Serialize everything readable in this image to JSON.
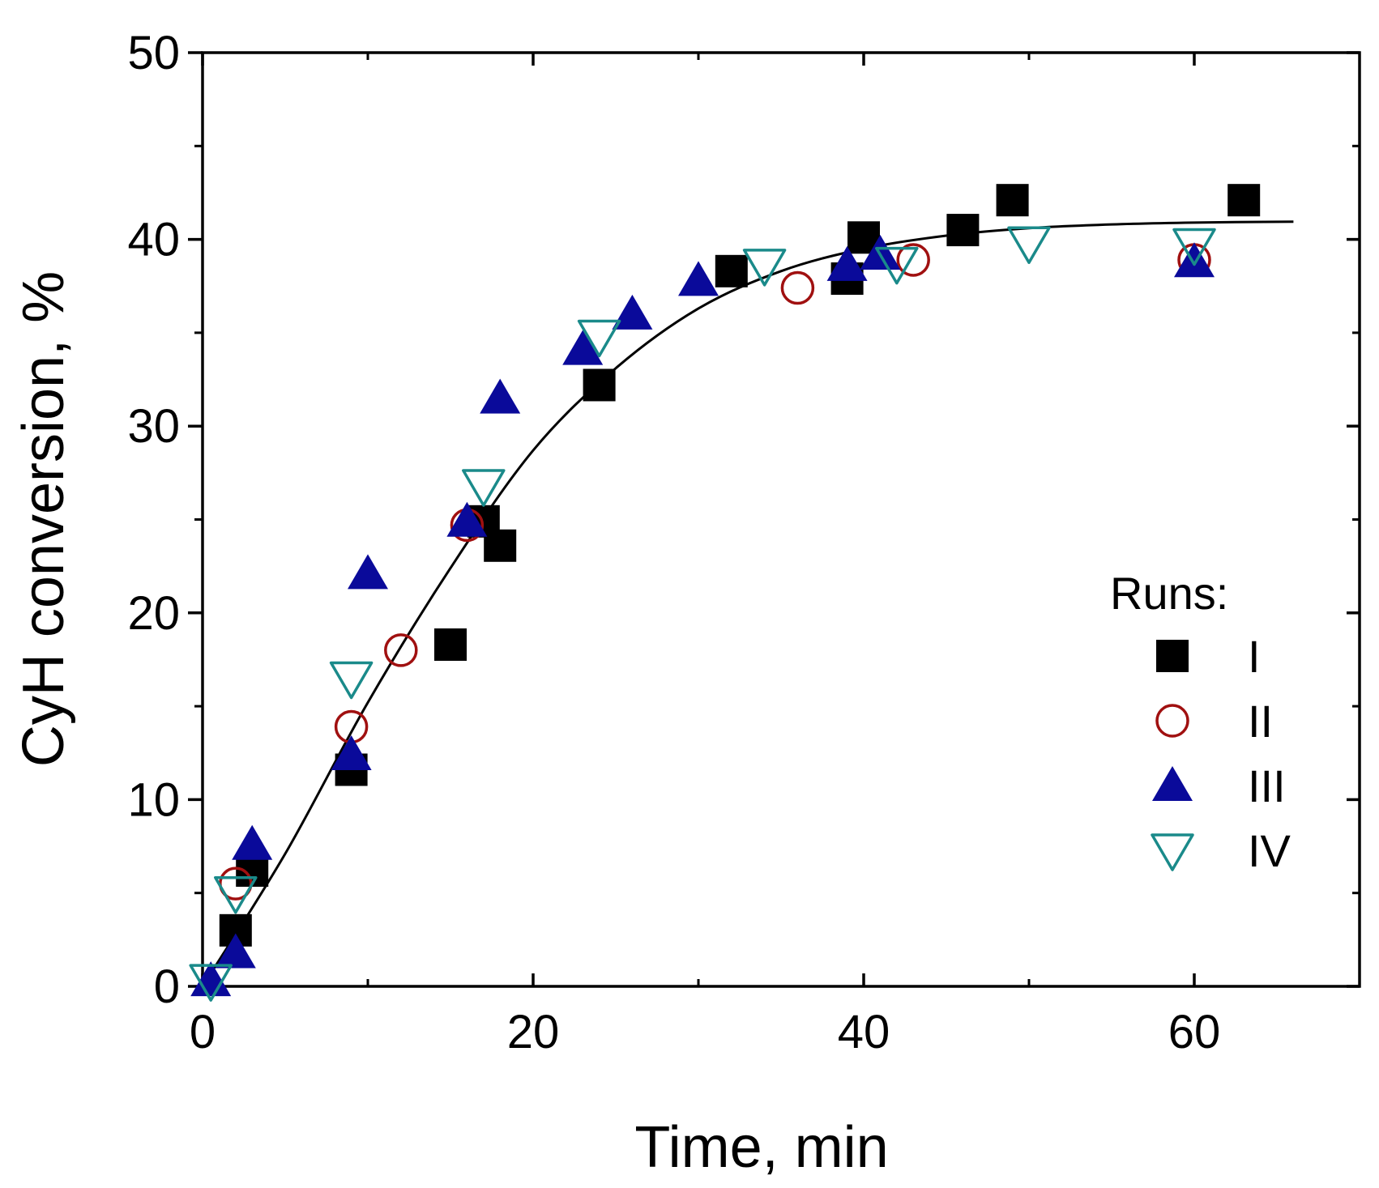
{
  "chart_data": {
    "type": "scatter",
    "title": "",
    "xlabel": "Time, min",
    "ylabel": "CyH conversion, %",
    "xlim": [
      0,
      70
    ],
    "ylim": [
      0,
      50
    ],
    "xticks": [
      0,
      20,
      40,
      60
    ],
    "yticks": [
      0,
      10,
      20,
      30,
      40,
      50
    ],
    "grid": false,
    "legend": {
      "title": "Runs:",
      "position": "right"
    },
    "series": [
      {
        "name": "I",
        "marker": "filled-square",
        "color": "#000000",
        "points": [
          [
            2,
            3
          ],
          [
            3,
            6.2
          ],
          [
            9,
            11.6
          ],
          [
            15,
            18.3
          ],
          [
            17,
            24.9
          ],
          [
            18,
            23.6
          ],
          [
            24,
            32.2
          ],
          [
            32,
            38.3
          ],
          [
            39,
            37.9
          ],
          [
            40,
            40.1
          ],
          [
            46,
            40.5
          ],
          [
            49,
            42.1
          ],
          [
            63,
            42.1
          ]
        ]
      },
      {
        "name": "II",
        "marker": "open-circle",
        "color": "#a01010",
        "points": [
          [
            2,
            5.5
          ],
          [
            9,
            13.9
          ],
          [
            12,
            18
          ],
          [
            16,
            24.7
          ],
          [
            36,
            37.4
          ],
          [
            43,
            38.9
          ],
          [
            60,
            38.9
          ]
        ]
      },
      {
        "name": "III",
        "marker": "filled-triangle-up",
        "color": "#0a0a9a",
        "points": [
          [
            0.5,
            0.3
          ],
          [
            2,
            1.8
          ],
          [
            3,
            7.6
          ],
          [
            9,
            12.4
          ],
          [
            10,
            22.1
          ],
          [
            16,
            24.9
          ],
          [
            18,
            31.5
          ],
          [
            23,
            34.1
          ],
          [
            26,
            36
          ],
          [
            30,
            37.8
          ],
          [
            39,
            38.6
          ],
          [
            41,
            39.2
          ],
          [
            60,
            38.8
          ]
        ]
      },
      {
        "name": "IV",
        "marker": "open-triangle-down",
        "color": "#1a8a8a",
        "points": [
          [
            0.5,
            0.3
          ],
          [
            2,
            5
          ],
          [
            9,
            16.5
          ],
          [
            17,
            26.8
          ],
          [
            24,
            34.8
          ],
          [
            34,
            38.6
          ],
          [
            42,
            38.7
          ],
          [
            50,
            39.8
          ],
          [
            60,
            39.7
          ]
        ]
      }
    ],
    "fit_curve": {
      "name": "fit",
      "color": "#000000",
      "points": [
        [
          0,
          0
        ],
        [
          5,
          7.1
        ],
        [
          10,
          15.2
        ],
        [
          15,
          22.4
        ],
        [
          20,
          28.7
        ],
        [
          25,
          33.1
        ],
        [
          30,
          36.3
        ],
        [
          35,
          38.3
        ],
        [
          40,
          39.5
        ],
        [
          45,
          40.2
        ],
        [
          50,
          40.6
        ],
        [
          55,
          40.8
        ],
        [
          60,
          40.9
        ],
        [
          66,
          40.95
        ]
      ]
    }
  }
}
